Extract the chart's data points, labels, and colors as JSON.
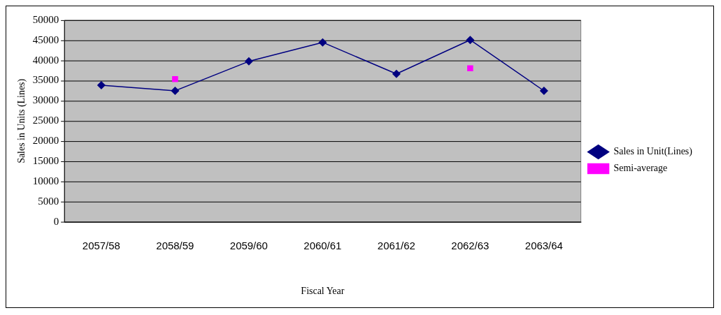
{
  "chart_data": {
    "type": "line",
    "xlabel": "Fiscal Year",
    "ylabel": "Sales in Units (Lines)",
    "categories": [
      "2057/58",
      "2058/59",
      "2059/60",
      "2060/61",
      "2061/62",
      "2062/63",
      "2063/64"
    ],
    "series": [
      {
        "name": "Sales in Unit(Lines)",
        "color": "#000080",
        "values": [
          33900,
          32500,
          39800,
          44500,
          36700,
          45100,
          32500
        ],
        "marker": "diamond"
      },
      {
        "name": "Semi-average",
        "type": "scatter",
        "color": "#ff00ff",
        "x": [
          "2058/59",
          "2062/63"
        ],
        "values": [
          35400,
          38100
        ],
        "marker": "square"
      }
    ],
    "ylim": [
      0,
      50000
    ],
    "yticks": [
      0,
      5000,
      10000,
      15000,
      20000,
      25000,
      30000,
      35000,
      40000,
      45000,
      50000
    ],
    "grid": "y",
    "legend": "right"
  }
}
